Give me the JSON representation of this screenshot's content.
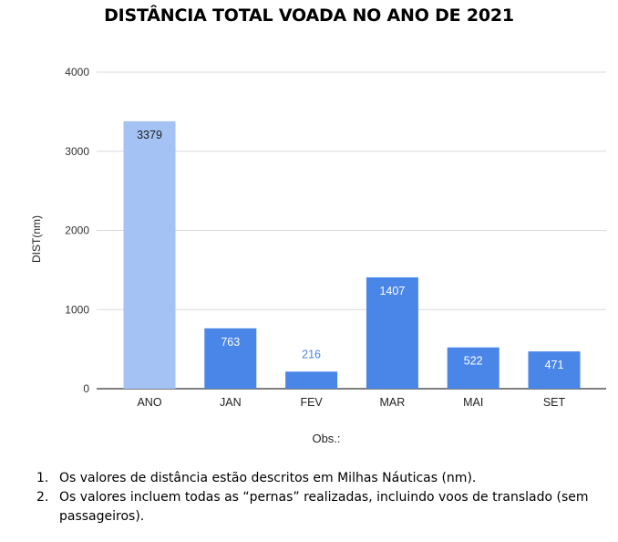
{
  "chart_data": {
    "type": "bar",
    "title": "DISTÂNCIA TOTAL VOADA NO ANO DE 2021",
    "xlabel": "Obs.:",
    "ylabel": "DIST(nm)",
    "categories": [
      "ANO",
      "JAN",
      "FEV",
      "MAR",
      "MAI",
      "SET"
    ],
    "values": [
      3379,
      763,
      216,
      1407,
      522,
      471
    ],
    "yticks": [
      0,
      1000,
      2000,
      3000,
      4000
    ],
    "ylim": [
      0,
      4000
    ],
    "grid": true,
    "colors": {
      "bar_highlight": "#a4c2f4",
      "bar": "#4a86e8",
      "label_inside": "#ffffff",
      "label_outside": "#4a86e8",
      "label_dark": "#222222",
      "grid": "#d9d9d9",
      "axis": "#333333"
    }
  },
  "notes": [
    {
      "num": "1.",
      "text": "Os valores de distância estão descritos em Milhas Náuticas (nm)."
    },
    {
      "num": "2.",
      "text": "Os valores incluem todas as “pernas” realizadas, incluindo voos de translado (sem passageiros)."
    }
  ]
}
